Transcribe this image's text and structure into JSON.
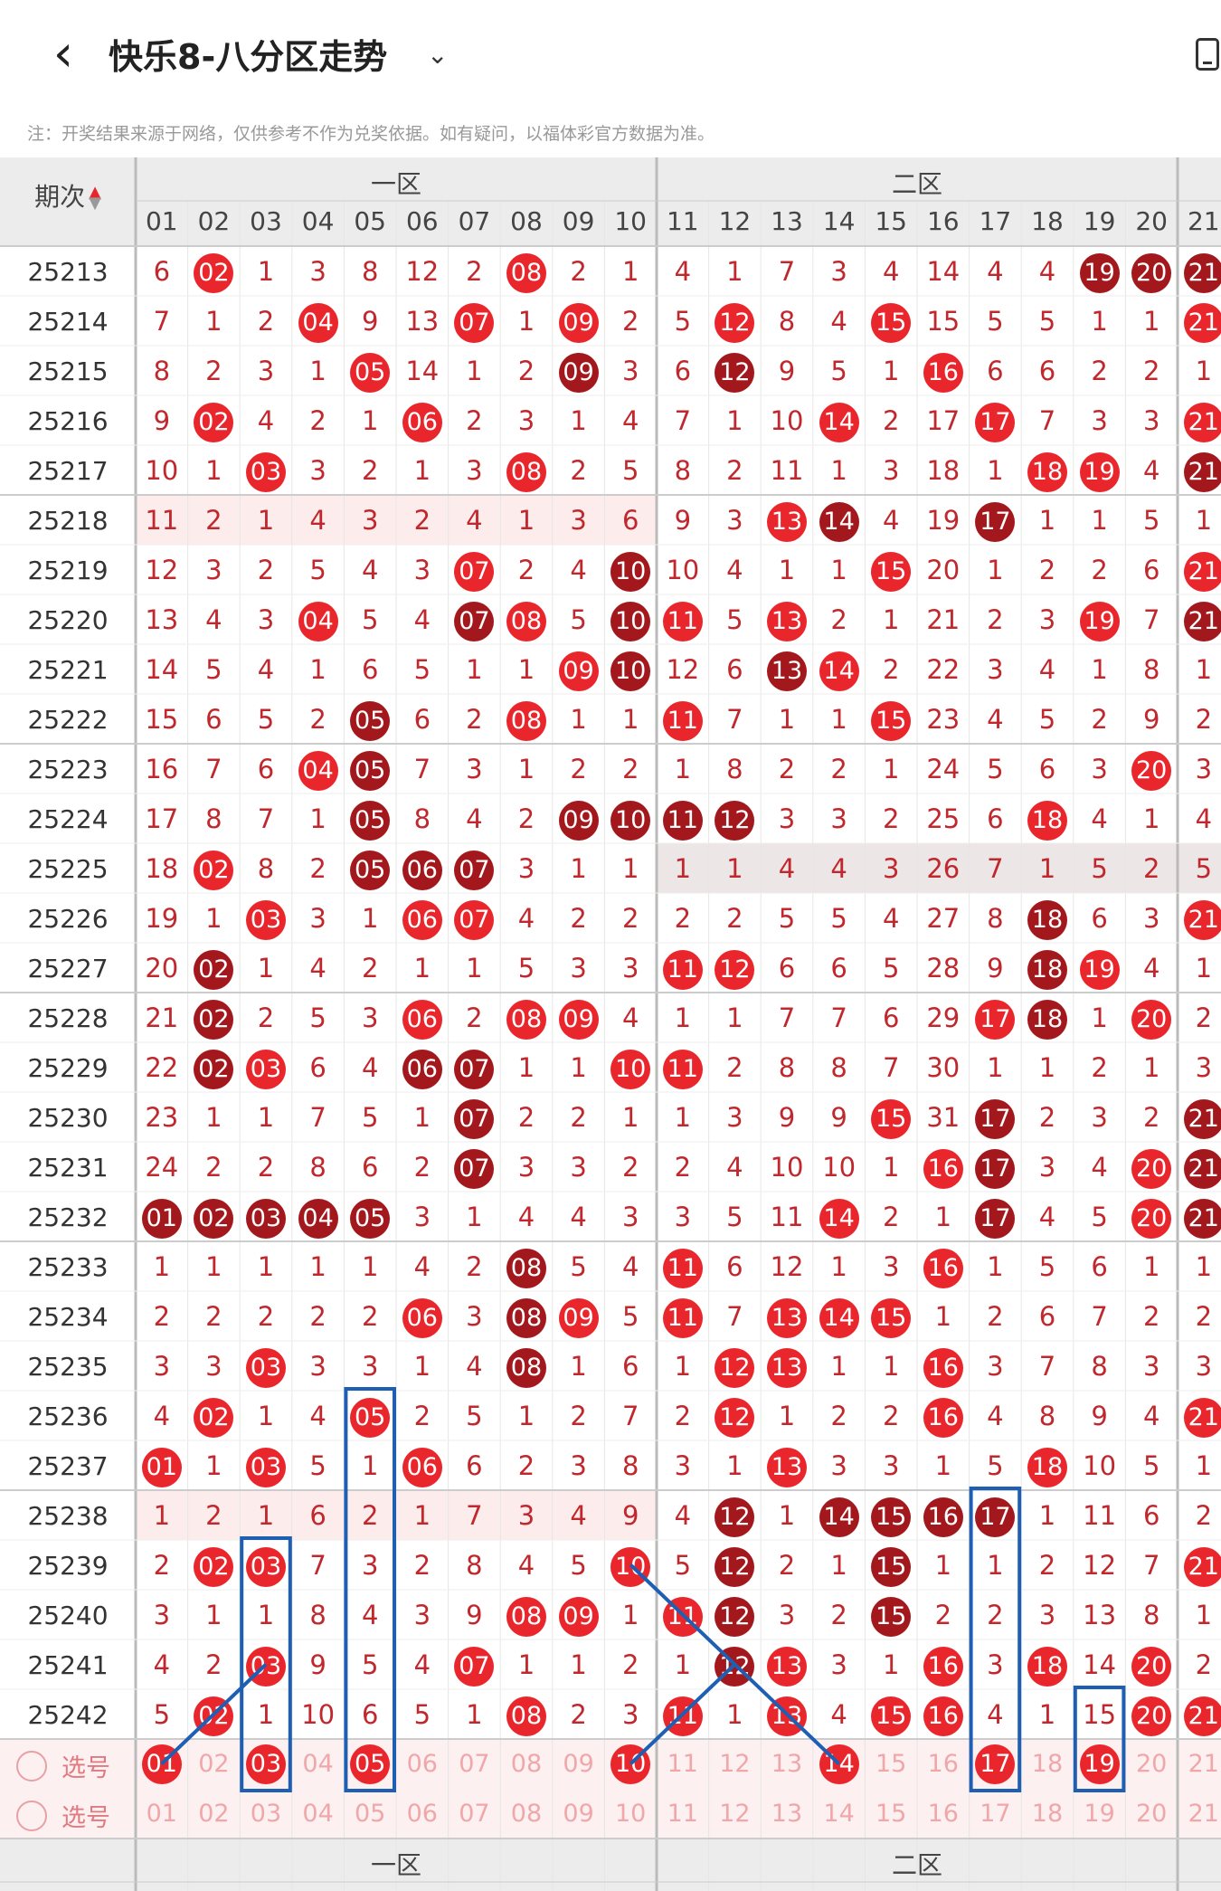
{
  "header": {
    "title": "快乐8-八分区走势",
    "back_icon": "chevron-left-icon",
    "dropdown_icon": "chevron-down-icon",
    "device_icon": "phone-icon"
  },
  "note": "注：开奖结果来源于网络，仅供参考不作为兑奖依据。如有疑问，以福体彩官方数据为准。",
  "table": {
    "period_header": "期次",
    "zones": [
      "一区",
      "二区"
    ],
    "columns": [
      "01",
      "02",
      "03",
      "04",
      "05",
      "06",
      "07",
      "08",
      "09",
      "10",
      "11",
      "12",
      "13",
      "14",
      "15",
      "16",
      "17",
      "18",
      "19",
      "20",
      "21"
    ],
    "colors": {
      "hit": "#e8262c",
      "hit_repeat": "#a3181c",
      "miss": "#c0282e"
    },
    "rows": [
      {
        "p": "25213",
        "v": [
          "6",
          "02",
          "1",
          "3",
          "8",
          "12",
          "2",
          "08",
          "2",
          "1",
          "4",
          "1",
          "7",
          "3",
          "4",
          "14",
          "4",
          "4",
          "19",
          "20",
          "21"
        ],
        "d": [
          "",
          "",
          "",
          "",
          "",
          "",
          "",
          "",
          "",
          "",
          "",
          "",
          "",
          "",
          "",
          "",
          "",
          "",
          "d",
          "d",
          "d"
        ]
      },
      {
        "p": "25214",
        "v": [
          "7",
          "1",
          "2",
          "04",
          "9",
          "13",
          "07",
          "1",
          "09",
          "2",
          "5",
          "12",
          "8",
          "4",
          "15",
          "15",
          "5",
          "5",
          "1",
          "1",
          "21"
        ],
        "d": []
      },
      {
        "p": "25215",
        "v": [
          "8",
          "2",
          "3",
          "1",
          "05",
          "14",
          "1",
          "2",
          "09",
          "3",
          "6",
          "12",
          "9",
          "5",
          "1",
          "16",
          "6",
          "6",
          "2",
          "2",
          "1"
        ],
        "d": [
          "",
          "",
          "",
          "",
          "",
          "",
          "",
          "",
          "d",
          "",
          "",
          "d"
        ]
      },
      {
        "p": "25216",
        "v": [
          "9",
          "02",
          "4",
          "2",
          "1",
          "06",
          "2",
          "3",
          "1",
          "4",
          "7",
          "1",
          "10",
          "14",
          "2",
          "17",
          "17",
          "7",
          "3",
          "3",
          "21"
        ],
        "d": []
      },
      {
        "p": "25217",
        "v": [
          "10",
          "1",
          "03",
          "3",
          "2",
          "1",
          "3",
          "08",
          "2",
          "5",
          "8",
          "2",
          "11",
          "1",
          "3",
          "18",
          "1",
          "18",
          "19",
          "4",
          "21"
        ],
        "d": [
          "",
          "",
          "",
          "",
          "",
          "",
          "",
          "",
          "",
          "",
          "",
          "",
          "",
          "",
          "",
          "",
          "",
          "",
          "",
          "",
          "d"
        ]
      },
      {
        "p": "25218",
        "v": [
          "11",
          "2",
          "1",
          "4",
          "3",
          "2",
          "4",
          "1",
          "3",
          "6",
          "9",
          "3",
          "13",
          "14",
          "4",
          "19",
          "17",
          "1",
          "1",
          "5",
          "1"
        ],
        "d": [
          "",
          "",
          "",
          "",
          "",
          "",
          "",
          "",
          "",
          "",
          "",
          "",
          "",
          "d",
          "",
          "",
          "d"
        ]
      },
      {
        "p": "25219",
        "v": [
          "12",
          "3",
          "2",
          "5",
          "4",
          "3",
          "07",
          "2",
          "4",
          "10",
          "10",
          "4",
          "1",
          "1",
          "15",
          "20",
          "1",
          "2",
          "2",
          "6",
          "21"
        ],
        "d": [
          "",
          "",
          "",
          "",
          "",
          "",
          "",
          "",
          "",
          "d"
        ]
      },
      {
        "p": "25220",
        "v": [
          "13",
          "4",
          "3",
          "04",
          "5",
          "4",
          "07",
          "08",
          "5",
          "10",
          "11",
          "5",
          "13",
          "2",
          "1",
          "21",
          "2",
          "3",
          "19",
          "7",
          "21"
        ],
        "d": [
          "",
          "",
          "",
          "",
          "",
          "",
          "d",
          "",
          "",
          "d",
          "",
          "",
          "",
          "",
          "",
          "",
          "",
          "",
          "",
          "",
          "d"
        ]
      },
      {
        "p": "25221",
        "v": [
          "14",
          "5",
          "4",
          "1",
          "6",
          "5",
          "1",
          "1",
          "09",
          "10",
          "12",
          "6",
          "13",
          "14",
          "2",
          "22",
          "3",
          "4",
          "1",
          "8",
          "1"
        ],
        "d": [
          "",
          "",
          "",
          "",
          "",
          "",
          "",
          "",
          "",
          "d",
          "",
          "",
          "d"
        ]
      },
      {
        "p": "25222",
        "v": [
          "15",
          "6",
          "5",
          "2",
          "05",
          "6",
          "2",
          "08",
          "1",
          "1",
          "11",
          "7",
          "1",
          "1",
          "15",
          "23",
          "4",
          "5",
          "2",
          "9",
          "2"
        ],
        "d": [
          "",
          "",
          "",
          "",
          "d"
        ]
      },
      {
        "p": "25223",
        "v": [
          "16",
          "7",
          "6",
          "04",
          "05",
          "7",
          "3",
          "1",
          "2",
          "2",
          "1",
          "8",
          "2",
          "2",
          "1",
          "24",
          "5",
          "6",
          "3",
          "20",
          "3"
        ],
        "d": [
          "",
          "",
          "",
          "",
          "d"
        ]
      },
      {
        "p": "25224",
        "v": [
          "17",
          "8",
          "7",
          "1",
          "05",
          "8",
          "4",
          "2",
          "09",
          "10",
          "11",
          "12",
          "3",
          "3",
          "2",
          "25",
          "6",
          "18",
          "4",
          "1",
          "4"
        ],
        "d": [
          "",
          "",
          "",
          "",
          "d",
          "",
          "",
          "",
          "d",
          "d",
          "d",
          "d"
        ]
      },
      {
        "p": "25225",
        "v": [
          "18",
          "02",
          "8",
          "2",
          "05",
          "06",
          "07",
          "3",
          "1",
          "1",
          "1",
          "1",
          "4",
          "4",
          "3",
          "26",
          "7",
          "1",
          "5",
          "2",
          "5"
        ],
        "d": [
          "",
          "",
          "",
          "",
          "d",
          "d",
          "d"
        ]
      },
      {
        "p": "25226",
        "v": [
          "19",
          "1",
          "03",
          "3",
          "1",
          "06",
          "07",
          "4",
          "2",
          "2",
          "2",
          "2",
          "5",
          "5",
          "4",
          "27",
          "8",
          "18",
          "6",
          "3",
          "21"
        ],
        "d": [
          "",
          "",
          "",
          "",
          "",
          "",
          "",
          "",
          "",
          "",
          "",
          "",
          "",
          "",
          "",
          "",
          "",
          "d"
        ]
      },
      {
        "p": "25227",
        "v": [
          "20",
          "02",
          "1",
          "4",
          "2",
          "1",
          "1",
          "5",
          "3",
          "3",
          "11",
          "12",
          "6",
          "6",
          "5",
          "28",
          "9",
          "18",
          "19",
          "4",
          "1"
        ],
        "d": [
          "",
          "d",
          "",
          "",
          "",
          "",
          "",
          "",
          "",
          "",
          "",
          "",
          "",
          "",
          "",
          "",
          "",
          "d"
        ]
      },
      {
        "p": "25228",
        "v": [
          "21",
          "02",
          "2",
          "5",
          "3",
          "06",
          "2",
          "08",
          "09",
          "4",
          "1",
          "1",
          "7",
          "7",
          "6",
          "29",
          "17",
          "18",
          "1",
          "20",
          "2"
        ],
        "d": [
          "",
          "d",
          "",
          "",
          "",
          "",
          "",
          "",
          "",
          "",
          "",
          "",
          "",
          "",
          "",
          "",
          "",
          "d"
        ]
      },
      {
        "p": "25229",
        "v": [
          "22",
          "02",
          "03",
          "6",
          "4",
          "06",
          "07",
          "1",
          "1",
          "10",
          "11",
          "2",
          "8",
          "8",
          "7",
          "30",
          "1",
          "1",
          "2",
          "1",
          "3"
        ],
        "d": [
          "",
          "d",
          "",
          "",
          "",
          "d",
          "d"
        ]
      },
      {
        "p": "25230",
        "v": [
          "23",
          "1",
          "1",
          "7",
          "5",
          "1",
          "07",
          "2",
          "2",
          "1",
          "1",
          "3",
          "9",
          "9",
          "15",
          "31",
          "17",
          "2",
          "3",
          "2",
          "21"
        ],
        "d": [
          "",
          "",
          "",
          "",
          "",
          "",
          "d",
          "",
          "",
          "",
          "",
          "",
          "",
          "",
          "",
          "",
          "d",
          "",
          "",
          "",
          "d"
        ]
      },
      {
        "p": "25231",
        "v": [
          "24",
          "2",
          "2",
          "8",
          "6",
          "2",
          "07",
          "3",
          "3",
          "2",
          "2",
          "4",
          "10",
          "10",
          "1",
          "16",
          "17",
          "3",
          "4",
          "20",
          "21"
        ],
        "d": [
          "",
          "",
          "",
          "",
          "",
          "",
          "d",
          "",
          "",
          "",
          "",
          "",
          "",
          "",
          "",
          "",
          "d",
          "",
          "",
          "",
          "d"
        ]
      },
      {
        "p": "25232",
        "v": [
          "01",
          "02",
          "03",
          "04",
          "05",
          "3",
          "1",
          "4",
          "4",
          "3",
          "3",
          "5",
          "11",
          "14",
          "2",
          "1",
          "17",
          "4",
          "5",
          "20",
          "21"
        ],
        "d": [
          "d",
          "d",
          "d",
          "d",
          "d",
          "",
          "",
          "",
          "",
          "",
          "",
          "",
          "",
          "",
          "",
          "",
          "d",
          "",
          "",
          "",
          "d"
        ]
      },
      {
        "p": "25233",
        "v": [
          "1",
          "1",
          "1",
          "1",
          "1",
          "4",
          "2",
          "08",
          "5",
          "4",
          "11",
          "6",
          "12",
          "1",
          "3",
          "16",
          "1",
          "5",
          "6",
          "1",
          "1"
        ],
        "d": [
          "",
          "",
          "",
          "",
          "",
          "",
          "",
          "d"
        ]
      },
      {
        "p": "25234",
        "v": [
          "2",
          "2",
          "2",
          "2",
          "2",
          "06",
          "3",
          "08",
          "09",
          "5",
          "11",
          "7",
          "13",
          "14",
          "15",
          "1",
          "2",
          "6",
          "7",
          "2",
          "2"
        ],
        "d": [
          "",
          "",
          "",
          "",
          "",
          "",
          "",
          "d"
        ]
      },
      {
        "p": "25235",
        "v": [
          "3",
          "3",
          "03",
          "3",
          "3",
          "1",
          "4",
          "08",
          "1",
          "6",
          "1",
          "12",
          "13",
          "1",
          "1",
          "16",
          "3",
          "7",
          "8",
          "3",
          "3"
        ],
        "d": [
          "",
          "",
          "",
          "",
          "",
          "",
          "",
          "d"
        ]
      },
      {
        "p": "25236",
        "v": [
          "4",
          "02",
          "1",
          "4",
          "05",
          "2",
          "5",
          "1",
          "2",
          "7",
          "2",
          "12",
          "1",
          "2",
          "2",
          "16",
          "4",
          "8",
          "9",
          "4",
          "21"
        ],
        "d": []
      },
      {
        "p": "25237",
        "v": [
          "01",
          "1",
          "03",
          "5",
          "1",
          "06",
          "6",
          "2",
          "3",
          "8",
          "3",
          "1",
          "13",
          "3",
          "3",
          "1",
          "5",
          "18",
          "10",
          "5",
          "1"
        ],
        "d": []
      },
      {
        "p": "25238",
        "v": [
          "1",
          "2",
          "1",
          "6",
          "2",
          "1",
          "7",
          "3",
          "4",
          "9",
          "4",
          "12",
          "1",
          "14",
          "15",
          "16",
          "17",
          "1",
          "11",
          "6",
          "2"
        ],
        "d": [
          "",
          "",
          "",
          "",
          "",
          "",
          "",
          "",
          "",
          "",
          "",
          "d",
          "",
          "d",
          "d",
          "d",
          "d"
        ]
      },
      {
        "p": "25239",
        "v": [
          "2",
          "02",
          "03",
          "7",
          "3",
          "2",
          "8",
          "4",
          "5",
          "10",
          "5",
          "12",
          "2",
          "1",
          "15",
          "1",
          "1",
          "2",
          "12",
          "7",
          "21"
        ],
        "d": [
          "",
          "",
          "",
          "",
          "",
          "",
          "",
          "",
          "",
          "",
          "",
          "d",
          "",
          "",
          "d"
        ]
      },
      {
        "p": "25240",
        "v": [
          "3",
          "1",
          "1",
          "8",
          "4",
          "3",
          "9",
          "08",
          "09",
          "1",
          "11",
          "12",
          "3",
          "2",
          "15",
          "2",
          "2",
          "3",
          "13",
          "8",
          "1"
        ],
        "d": [
          "",
          "",
          "",
          "",
          "",
          "",
          "",
          "",
          "",
          "",
          "",
          "d",
          "",
          "",
          "d"
        ]
      },
      {
        "p": "25241",
        "v": [
          "4",
          "2",
          "03",
          "9",
          "5",
          "4",
          "07",
          "1",
          "1",
          "2",
          "1",
          "12",
          "13",
          "3",
          "1",
          "16",
          "3",
          "18",
          "14",
          "20",
          "2"
        ],
        "d": [
          "",
          "",
          "",
          "",
          "",
          "",
          "",
          "",
          "",
          "",
          "",
          "d"
        ]
      },
      {
        "p": "25242",
        "v": [
          "5",
          "02",
          "1",
          "10",
          "6",
          "5",
          "1",
          "08",
          "2",
          "3",
          "11",
          "1",
          "13",
          "4",
          "15",
          "16",
          "4",
          "1",
          "15",
          "20",
          "21"
        ],
        "d": []
      }
    ],
    "select_rows": [
      {
        "label": "选号",
        "balls": [
          "01",
          "03",
          "05",
          "10",
          "14",
          "17",
          "19"
        ]
      },
      {
        "label": "选号",
        "balls": []
      }
    ]
  }
}
